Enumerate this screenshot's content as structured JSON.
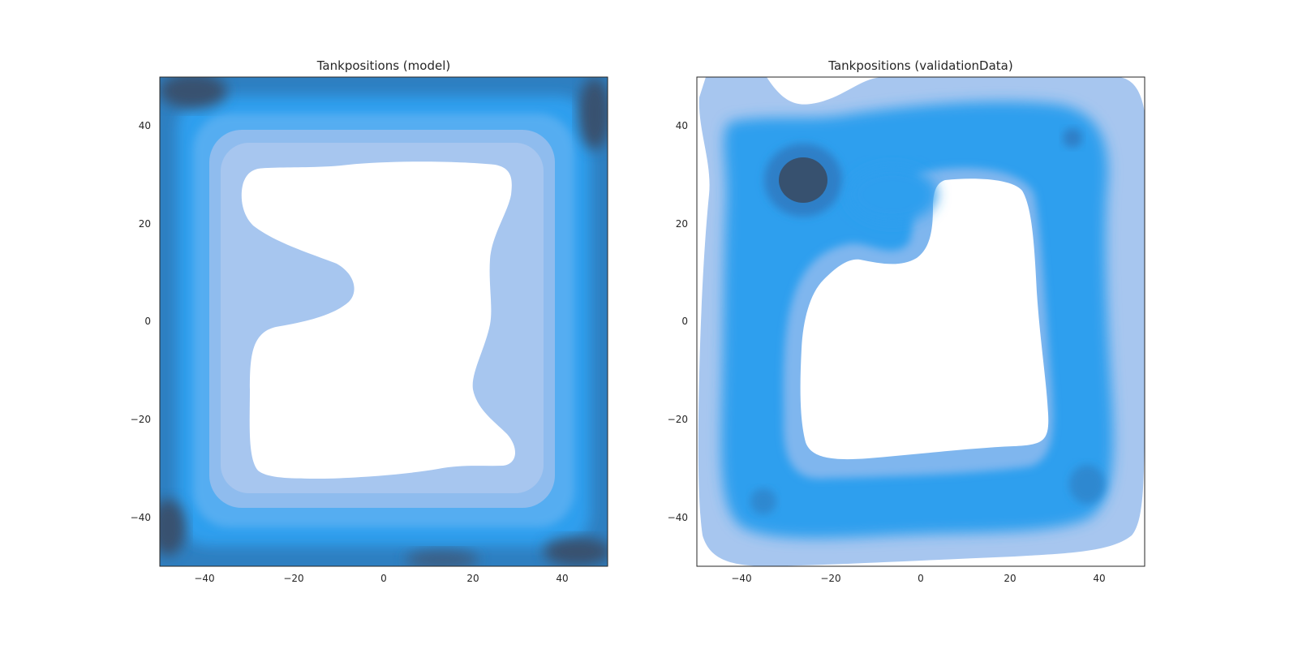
{
  "chart_data": [
    {
      "type": "heatmap",
      "title": "Tankpositions (model)",
      "xlabel": "",
      "ylabel": "",
      "xlim": [
        -50,
        50
      ],
      "ylim": [
        -50,
        50
      ],
      "xticks": [
        -40,
        -20,
        0,
        20,
        40
      ],
      "yticks": [
        -40,
        -20,
        0,
        20,
        40
      ],
      "tick_labels_x": [
        "−40",
        "−20",
        "0",
        "20",
        "40"
      ],
      "tick_labels_y": [
        "−40",
        "−20",
        "0",
        "20",
        "40"
      ],
      "grid": false,
      "style": "kde density contours (filled)",
      "empty_region": "central area approximately x -30..28, y -32..32 has no density",
      "density_peaks": [
        {
          "x": -45,
          "y": 47,
          "level": "high"
        },
        {
          "x": 47,
          "y": 42,
          "level": "high"
        },
        {
          "x": -48,
          "y": -42,
          "level": "high"
        },
        {
          "x": 42,
          "y": -47,
          "level": "high"
        },
        {
          "x": 10,
          "y": -47,
          "level": "high"
        }
      ]
    },
    {
      "type": "heatmap",
      "title": "Tankpositions (validationData)",
      "xlabel": "",
      "ylabel": "",
      "xlim": [
        -50,
        50
      ],
      "ylim": [
        -50,
        50
      ],
      "xticks": [
        -40,
        -20,
        0,
        20,
        40
      ],
      "yticks": [
        -40,
        -20,
        0,
        20,
        40
      ],
      "tick_labels_x": [
        "−40",
        "−20",
        "0",
        "20",
        "40"
      ],
      "tick_labels_y": [
        "−40",
        "−20",
        "0",
        "20",
        "40"
      ],
      "grid": false,
      "style": "kde density contours (filled)",
      "empty_region": "central area approximately x -27..28, y -28..30 has no density",
      "density_peaks": [
        {
          "x": -26,
          "y": 28,
          "level": "very high"
        },
        {
          "x": 34,
          "y": 37,
          "level": "high"
        },
        {
          "x": -35,
          "y": -37,
          "level": "high"
        },
        {
          "x": 38,
          "y": -33,
          "level": "high"
        }
      ]
    }
  ],
  "colors": {
    "background": "#ffffff",
    "contour_light": "#a7c6ef",
    "contour_mid": "#2f9fee",
    "contour_peak": "#37516f",
    "text": "#262626"
  }
}
